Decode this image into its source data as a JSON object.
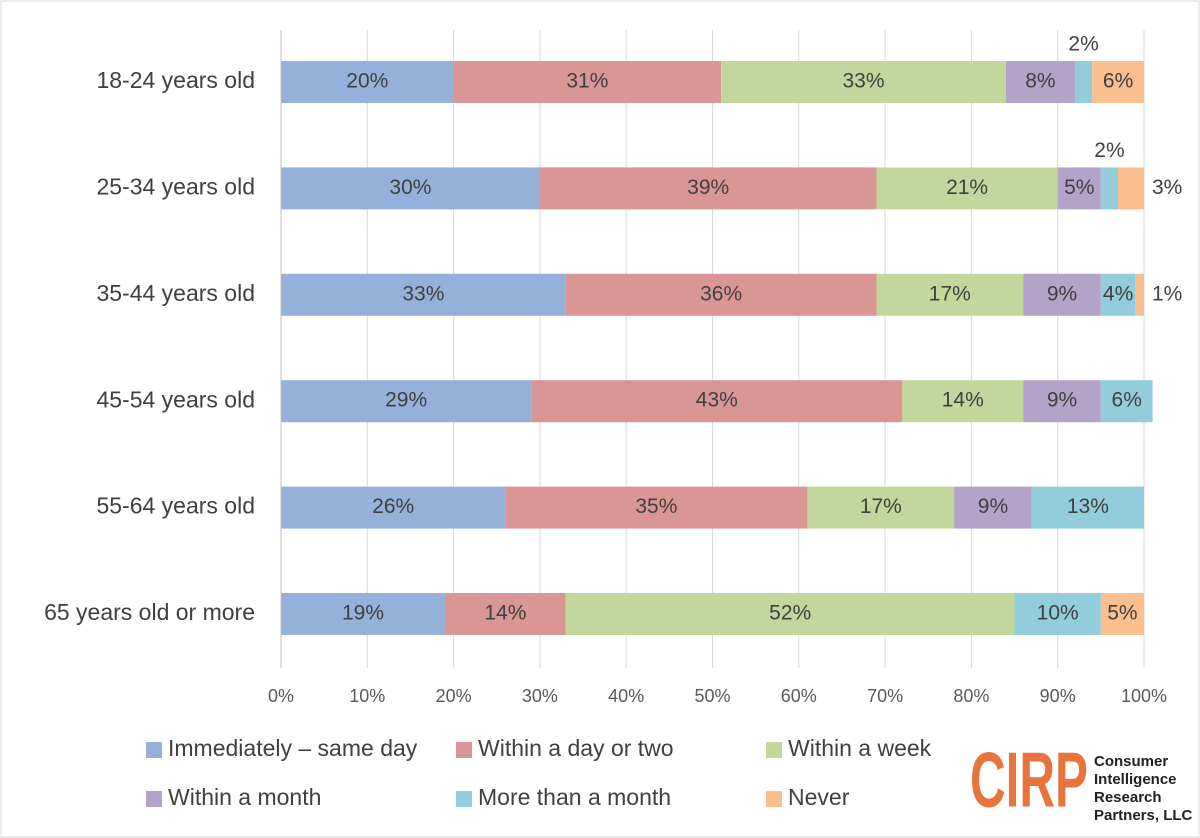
{
  "chart_data": {
    "type": "stacked-bar-horizontal",
    "categories": [
      "18-24 years old",
      "25-34 years old",
      "35-44 years old",
      "45-54 years old",
      "55-64 years old",
      "65 years old or more"
    ],
    "series": [
      {
        "name": "Immediately – same day",
        "color": "#95b0d9",
        "values": [
          20,
          30,
          33,
          29,
          26,
          19
        ],
        "value_labels": [
          "20%",
          "30%",
          "33%",
          "29%",
          "26%",
          "19%"
        ]
      },
      {
        "name": "Within a day or two",
        "color": "#d99694",
        "values": [
          31,
          39,
          36,
          43,
          35,
          14
        ],
        "value_labels": [
          "31%",
          "39%",
          "36%",
          "43%",
          "35%",
          "14%"
        ]
      },
      {
        "name": "Within a week",
        "color": "#c3d79c",
        "values": [
          33,
          21,
          17,
          14,
          17,
          52
        ],
        "value_labels": [
          "33%",
          "21%",
          "17%",
          "14%",
          "17%",
          "52%"
        ]
      },
      {
        "name": "Within a month",
        "color": "#b3a3c8",
        "values": [
          8,
          5,
          9,
          9,
          9,
          null
        ],
        "value_labels": [
          "8%",
          "5%",
          "9%",
          "9%",
          "9%",
          null
        ]
      },
      {
        "name": "More than a month",
        "color": "#93cddc",
        "values": [
          2,
          2,
          4,
          6,
          13,
          10
        ],
        "value_labels": [
          "2%",
          "2%",
          "4%",
          "6%",
          "13%",
          "10%"
        ]
      },
      {
        "name": "Never",
        "color": "#f9bf8f",
        "values": [
          6,
          3,
          1,
          null,
          null,
          5
        ],
        "value_labels": [
          "6%",
          "3%",
          "1%",
          null,
          null,
          "5%"
        ]
      }
    ],
    "xlim": [
      0,
      100
    ],
    "xticks": [
      {
        "value": 0,
        "label": "0%"
      },
      {
        "value": 10,
        "label": "10%"
      },
      {
        "value": 20,
        "label": "20%"
      },
      {
        "value": 30,
        "label": "30%"
      },
      {
        "value": 40,
        "label": "40%"
      },
      {
        "value": 50,
        "label": "50%"
      },
      {
        "value": 60,
        "label": "60%"
      },
      {
        "value": 70,
        "label": "70%"
      },
      {
        "value": 80,
        "label": "80%"
      },
      {
        "value": 90,
        "label": "90%"
      },
      {
        "value": 100,
        "label": "100%"
      }
    ],
    "grid": true
  },
  "logo": {
    "mark": "CIRP",
    "lines": [
      "Consumer",
      "Intelligence",
      "Research",
      "Partners, LLC"
    ]
  }
}
